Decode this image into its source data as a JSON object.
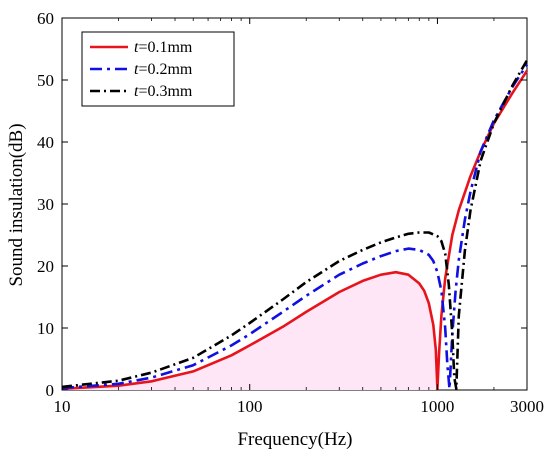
{
  "chart_data": {
    "type": "line",
    "xlabel": "Frequency(Hz)",
    "ylabel": "Sound insulation(dB)",
    "x_scale": "log",
    "xlim": [
      10,
      3000
    ],
    "ylim": [
      0,
      60
    ],
    "x_ticks": [
      10,
      100,
      1000,
      3000
    ],
    "x_tick_labels": [
      "10",
      "100",
      "1000",
      "3000"
    ],
    "y_ticks": [
      0,
      10,
      20,
      30,
      40,
      50,
      60
    ],
    "y_tick_labels": [
      "0",
      "10",
      "20",
      "30",
      "40",
      "50",
      "60"
    ],
    "grid": false,
    "legend_position": "top-left",
    "series": [
      {
        "name": "t=0.1mm",
        "legend_var": "t",
        "legend_rest": "=0.1mm",
        "color": "#e8141c",
        "dash": "solid",
        "x": [
          10,
          20,
          30,
          50,
          80,
          100,
          150,
          200,
          300,
          400,
          500,
          600,
          700,
          800,
          850,
          900,
          950,
          980,
          1000,
          1020,
          1050,
          1100,
          1200,
          1300,
          1500,
          1700,
          2000,
          2500,
          3000
        ],
        "y": [
          0.2,
          0.7,
          1.4,
          3.0,
          5.6,
          7.2,
          10.2,
          12.6,
          15.8,
          17.6,
          18.6,
          19.0,
          18.6,
          17.2,
          16.0,
          14.0,
          10.5,
          6.5,
          0.2,
          6.0,
          12.0,
          18.0,
          25.0,
          29.0,
          34.5,
          38.5,
          43.0,
          47.8,
          51.5
        ]
      },
      {
        "name": "t=0.2mm",
        "legend_var": "t",
        "legend_rest": "=0.2mm",
        "color": "#1010e0",
        "dash": "dashdot-blue",
        "x": [
          10,
          20,
          30,
          50,
          80,
          100,
          150,
          200,
          300,
          400,
          500,
          600,
          700,
          800,
          900,
          950,
          1000,
          1050,
          1100,
          1130,
          1160,
          1200,
          1250,
          1300,
          1400,
          1500,
          1700,
          2000,
          2500,
          3000
        ],
        "y": [
          0.3,
          1.0,
          2.0,
          4.0,
          7.2,
          9.0,
          12.6,
          15.2,
          18.6,
          20.4,
          21.6,
          22.4,
          22.8,
          22.6,
          21.8,
          20.8,
          19.0,
          16.0,
          10.0,
          4.0,
          0.2,
          9.0,
          16.0,
          21.0,
          27.5,
          32.0,
          38.5,
          43.5,
          48.8,
          52.5
        ]
      },
      {
        "name": "t=0.3mm",
        "legend_var": "t",
        "legend_rest": "=0.3mm",
        "color": "#000000",
        "dash": "dashdot",
        "x": [
          10,
          20,
          30,
          50,
          80,
          100,
          150,
          200,
          300,
          400,
          500,
          600,
          700,
          800,
          900,
          1000,
          1050,
          1100,
          1150,
          1200,
          1230,
          1260,
          1300,
          1400,
          1500,
          1700,
          2000,
          2500,
          3000
        ],
        "y": [
          0.5,
          1.5,
          2.8,
          5.2,
          8.8,
          10.8,
          14.6,
          17.4,
          20.8,
          22.6,
          23.8,
          24.6,
          25.2,
          25.4,
          25.4,
          24.8,
          24.0,
          22.0,
          17.0,
          9.0,
          2.0,
          0.2,
          12.0,
          22.5,
          29.0,
          37.0,
          43.0,
          49.0,
          53.2
        ]
      }
    ]
  }
}
